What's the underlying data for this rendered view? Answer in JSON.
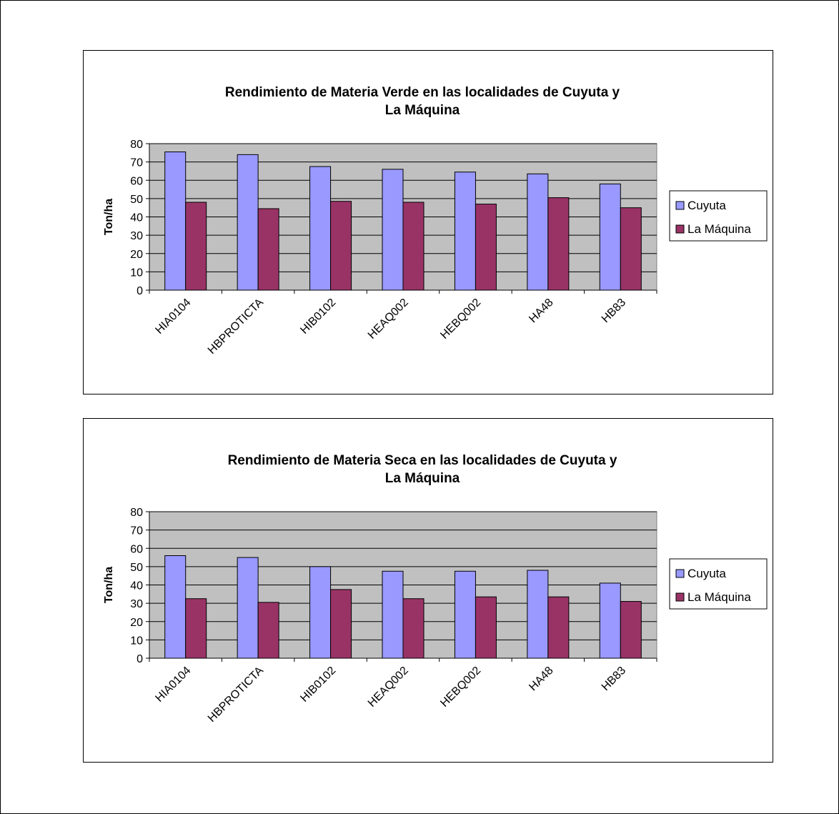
{
  "chart_data": [
    {
      "type": "bar",
      "title_lines": [
        "Rendimiento de Materia Verde en las localidades de Cuyuta y",
        "La Máquina"
      ],
      "xlabel": "",
      "ylabel": "Ton/ha",
      "ylim": [
        0,
        80
      ],
      "yticks": [
        0,
        10,
        20,
        30,
        40,
        50,
        60,
        70,
        80
      ],
      "grid": true,
      "legend": "right",
      "categories": [
        "HIA0104",
        "HBPROTICTA",
        "HIB0102",
        "HEAQ002",
        "HEBQ002",
        "HA48",
        "HB83"
      ],
      "series": [
        {
          "name": "Cuyuta",
          "color": "#9999ff",
          "values": [
            75.5,
            74,
            67.5,
            66,
            64.5,
            63.5,
            58
          ]
        },
        {
          "name": "La Máquina",
          "color": "#993366",
          "values": [
            48,
            44.5,
            48.5,
            48,
            47,
            50.5,
            45
          ]
        }
      ]
    },
    {
      "type": "bar",
      "title_lines": [
        "Rendimiento de Materia Seca en las localidades de Cuyuta y",
        "La Máquina"
      ],
      "xlabel": "",
      "ylabel": "Ton/ha",
      "ylim": [
        0,
        80
      ],
      "yticks": [
        0,
        10,
        20,
        30,
        40,
        50,
        60,
        70,
        80
      ],
      "grid": true,
      "legend": "right",
      "categories": [
        "HIA0104",
        "HBPROTICTA",
        "HIB0102",
        "HEAQ002",
        "HEBQ002",
        "HA48",
        "HB83"
      ],
      "series": [
        {
          "name": "Cuyuta",
          "color": "#9999ff",
          "values": [
            56,
            55,
            50,
            47.5,
            47.5,
            48,
            41
          ]
        },
        {
          "name": "La Máquina",
          "color": "#993366",
          "values": [
            32.5,
            30.5,
            37.5,
            32.5,
            33.5,
            33.5,
            31
          ]
        }
      ]
    }
  ],
  "colors": {
    "plot_background": "#c0c0c0",
    "border": "#000000"
  }
}
